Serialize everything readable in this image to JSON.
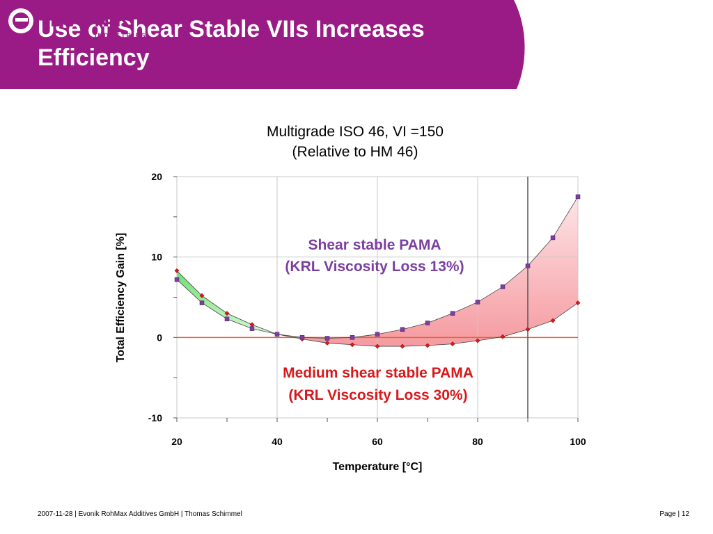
{
  "slide": {
    "title": "Use of Shear Stable VIIs Increases\nEfficiency",
    "brand_color": "#9b1b86",
    "logo": {
      "name": "EVONIK",
      "sub": "INDUSTRIES"
    }
  },
  "footer": {
    "left": "2007-11-28 | Evonik RohMax Additives GmbH | Thomas Schimmel",
    "right": "Page | 12"
  },
  "chart_data": {
    "type": "line",
    "title": "Multigrade ISO 46, VI =150",
    "subtitle": "(Relative to HM 46)",
    "xlabel": "Temperature [°C]",
    "ylabel": "Total Efficiency Gain [%]",
    "xlim": [
      20,
      100
    ],
    "ylim": [
      -10,
      20
    ],
    "xticks": [
      20,
      40,
      60,
      80,
      100
    ],
    "yticks": [
      -10,
      0,
      10,
      20
    ],
    "grid": true,
    "x": [
      20,
      25,
      30,
      35,
      40,
      45,
      50,
      55,
      60,
      65,
      70,
      75,
      80,
      85,
      90,
      95,
      100
    ],
    "series": [
      {
        "name": "Shear stable PAMA",
        "label_line2": "(KRL Viscosity Loss 13%)",
        "color": "#7b3fa0",
        "values": [
          7.2,
          4.3,
          2.3,
          1.1,
          0.4,
          0.0,
          -0.1,
          0.0,
          0.4,
          1.0,
          1.8,
          3.0,
          4.4,
          6.3,
          8.9,
          12.4,
          17.5
        ]
      },
      {
        "name": "Medium shear stable PAMA",
        "label_line2": "(KRL Viscosity Loss 30%)",
        "color": "#d7191c",
        "values": [
          8.3,
          5.2,
          3.0,
          1.6,
          0.4,
          -0.2,
          -0.7,
          -0.9,
          -1.1,
          -1.1,
          -1.0,
          -0.8,
          -0.4,
          0.1,
          1.0,
          2.1,
          4.3
        ]
      }
    ],
    "zero_line_color": "#e8612c",
    "highlight_x": 90,
    "fill_above_color": "#66dd66",
    "fill_below_color": "#f59aa0"
  }
}
